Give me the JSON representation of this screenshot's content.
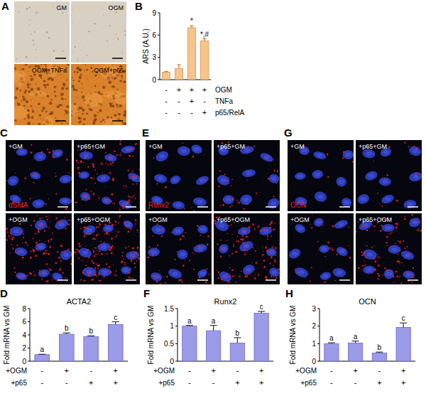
{
  "image_panels": [
    {
      "panel": "A",
      "labels": [
        "GM",
        "OGM",
        "OGM+TNFa",
        "OGM+p65"
      ]
    },
    {
      "panel": "C",
      "labels": [
        "+GM",
        "+p65+GM",
        "+OGM",
        "+p65+OGM"
      ],
      "stain": "αSMA"
    },
    {
      "panel": "E",
      "labels": [
        "+GM",
        "+p65+GM",
        "+OGM",
        "+p65+OGM"
      ],
      "stain": "Runx2"
    },
    {
      "panel": "G",
      "labels": [
        "+GM",
        "+p65+GM",
        "+OGM",
        "+p65+OGM"
      ],
      "stain": "OCN"
    }
  ],
  "chart_data": [
    {
      "panel": "B",
      "type": "bar",
      "y_label": "ARS (A.U.)",
      "categories": [
        null,
        null,
        null,
        null
      ],
      "values": [
        1.0,
        1.5,
        7.0,
        5.2
      ],
      "errors": [
        0.1,
        0.5,
        0.25,
        0.3
      ],
      "annotations": [
        null,
        null,
        "*",
        "*,#"
      ],
      "color": "#f7c48e",
      "ylim": [
        0,
        9
      ],
      "yticks": [
        0,
        3,
        6,
        9
      ],
      "conditions": [
        {
          "label": "OGM",
          "signs": [
            "-",
            "+",
            "+",
            "+"
          ]
        },
        {
          "label": "TNFa",
          "signs": [
            "-",
            "-",
            "+",
            "-"
          ]
        },
        {
          "label": "p65/RelA",
          "signs": [
            "-",
            "-",
            "-",
            "+"
          ]
        }
      ]
    },
    {
      "panel": "D",
      "type": "bar",
      "title": "ACTA2",
      "y_label": "Fold mRNA vs GM",
      "categories": [
        null,
        null,
        null,
        null
      ],
      "values": [
        1.0,
        4.1,
        3.75,
        5.6
      ],
      "errors": [
        0.05,
        0.2,
        0.1,
        0.4
      ],
      "annotations": [
        "a",
        "b",
        "b",
        "c"
      ],
      "color": "#9b9be8",
      "ylim": [
        0,
        8
      ],
      "yticks": [
        0,
        2,
        4,
        6,
        8
      ],
      "conditions": [
        {
          "label": "+OGM",
          "signs": [
            "-",
            "+",
            "-",
            "+"
          ]
        },
        {
          "label": "+p65",
          "signs": [
            "-",
            "-",
            "+",
            "+"
          ]
        }
      ]
    },
    {
      "panel": "F",
      "type": "bar",
      "title": "Runx2",
      "y_label": "Fold mRNA vs GM",
      "categories": [
        null,
        null,
        null,
        null
      ],
      "values": [
        1.0,
        0.87,
        0.52,
        1.37
      ],
      "errors": [
        0.02,
        0.15,
        0.15,
        0.05
      ],
      "annotations": [
        "a",
        "a",
        "b",
        "c"
      ],
      "color": "#9b9be8",
      "ylim": [
        0,
        1.5
      ],
      "yticks": [
        0,
        0.5,
        1,
        1.5
      ],
      "conditions": [
        {
          "label": "+OGM",
          "signs": [
            "-",
            "+",
            "-",
            "+"
          ]
        },
        {
          "label": "+p65",
          "signs": [
            "-",
            "-",
            "+",
            "+"
          ]
        }
      ]
    },
    {
      "panel": "H",
      "type": "bar",
      "title": "OCN",
      "y_label": "Fold mRNA vs GM",
      "categories": [
        null,
        null,
        null,
        null
      ],
      "values": [
        1.0,
        1.03,
        0.47,
        1.93
      ],
      "errors": [
        0.05,
        0.12,
        0.05,
        0.25
      ],
      "annotations": [
        "a",
        "a",
        "b",
        "c"
      ],
      "color": "#9b9be8",
      "ylim": [
        0,
        3
      ],
      "yticks": [
        0,
        1,
        2,
        3
      ],
      "conditions": [
        {
          "label": "+OGM",
          "signs": [
            "-",
            "+",
            "-",
            "+"
          ]
        },
        {
          "label": "+p65",
          "signs": [
            "-",
            "-",
            "+",
            "+"
          ]
        }
      ]
    }
  ]
}
